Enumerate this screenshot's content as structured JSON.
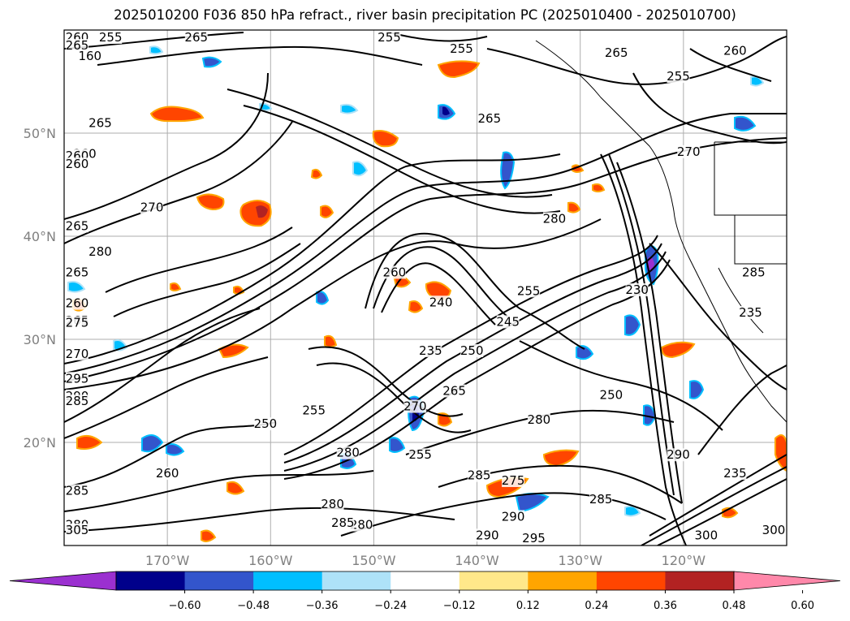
{
  "title": "2025010200 F036 850 hPa refract., river basin precipitation PC (2025010400 - 2025010700)",
  "lon_labels": [
    {
      "text": "170°W",
      "lon": -170
    },
    {
      "text": "160°W",
      "lon": -160
    },
    {
      "text": "150°W",
      "lon": -150
    },
    {
      "text": "140°W",
      "lon": -140
    },
    {
      "text": "130°W",
      "lon": -130
    },
    {
      "text": "120°W",
      "lon": -120
    }
  ],
  "lat_labels": [
    {
      "text": "50°N",
      "lat": 50
    },
    {
      "text": "40°N",
      "lat": 40
    },
    {
      "text": "30°N",
      "lat": 30
    },
    {
      "text": "20°N",
      "lat": 20
    }
  ],
  "extent": {
    "lon_min": -180,
    "lon_max": -110,
    "lat_min": 10,
    "lat_max": 60
  },
  "colorbar": {
    "colors": [
      "#9b30d0",
      "#00008b",
      "#3355cc",
      "#00bfff",
      "#aee2f8",
      "#ffffff",
      "#ffe88a",
      "#ffa500",
      "#ff4500",
      "#b22222",
      "#ff88aa"
    ],
    "tick_labels": [
      "−0.60",
      "−0.48",
      "−0.36",
      "−0.24",
      "−0.12",
      "0.12",
      "0.24",
      "0.36",
      "0.48",
      "0.60"
    ]
  },
  "contour_labels": [
    {
      "text": "260",
      "lon": -180.0,
      "lat": 59.6
    },
    {
      "text": "265",
      "lon": -183.5,
      "lat": 58.5
    },
    {
      "text": "255",
      "lon": -175.5,
      "lat": 59.7
    },
    {
      "text": "265",
      "lon": -167.2,
      "lat": 59.5
    },
    {
      "text": "255",
      "lon": -148.5,
      "lat": 59.6
    },
    {
      "text": "255",
      "lon": -141.5,
      "lat": 58.2
    },
    {
      "text": "265",
      "lon": -126.5,
      "lat": 57.8
    },
    {
      "text": "260",
      "lon": -115.0,
      "lat": 58.0
    },
    {
      "text": "255",
      "lon": -120.5,
      "lat": 55.5
    },
    {
      "text": "160",
      "lon": -177.5,
      "lat": 57.5
    },
    {
      "text": "265",
      "lon": -176.5,
      "lat": 51.0
    },
    {
      "text": "265",
      "lon": -138.8,
      "lat": 51.4
    },
    {
      "text": "270",
      "lon": -119.5,
      "lat": 48.2
    },
    {
      "text": "260",
      "lon": -178.0,
      "lat": 48.0
    },
    {
      "text": "260",
      "lon": -181.5,
      "lat": 47.8
    },
    {
      "text": "260",
      "lon": -179.8,
      "lat": 47.0
    },
    {
      "text": "265",
      "lon": -187.5,
      "lat": 41.0
    },
    {
      "text": "270",
      "lon": -171.5,
      "lat": 42.8
    },
    {
      "text": "280",
      "lon": -176.5,
      "lat": 38.5
    },
    {
      "text": "280",
      "lon": -132.5,
      "lat": 41.7
    },
    {
      "text": "260",
      "lon": -148.0,
      "lat": 36.5
    },
    {
      "text": "265",
      "lon": -184.0,
      "lat": 36.5
    },
    {
      "text": "255",
      "lon": -135.0,
      "lat": 34.7
    },
    {
      "text": "260",
      "lon": -185.0,
      "lat": 33.5
    },
    {
      "text": "265",
      "lon": -187.5,
      "lat": 31.8
    },
    {
      "text": "275",
      "lon": -181.5,
      "lat": 31.6
    },
    {
      "text": "245",
      "lon": -137.0,
      "lat": 31.7
    },
    {
      "text": "240",
      "lon": -143.5,
      "lat": 33.6
    },
    {
      "text": "235",
      "lon": -144.5,
      "lat": 28.9
    },
    {
      "text": "250",
      "lon": -140.5,
      "lat": 28.9
    },
    {
      "text": "230",
      "lon": -124.5,
      "lat": 34.8
    },
    {
      "text": "235",
      "lon": -113.5,
      "lat": 32.6
    },
    {
      "text": "285",
      "lon": -113.2,
      "lat": 36.5
    },
    {
      "text": "270",
      "lon": -184.8,
      "lat": 28.6
    },
    {
      "text": "295",
      "lon": -186.5,
      "lat": 26.2
    },
    {
      "text": "290",
      "lon": -190.0,
      "lat": 24.5
    },
    {
      "text": "285",
      "lon": -182.0,
      "lat": 24.0
    },
    {
      "text": "250",
      "lon": -127.0,
      "lat": 24.6
    },
    {
      "text": "265",
      "lon": -142.2,
      "lat": 25.0
    },
    {
      "text": "255",
      "lon": -155.8,
      "lat": 23.1
    },
    {
      "text": "270",
      "lon": -146.0,
      "lat": 23.5
    },
    {
      "text": "280",
      "lon": -134.0,
      "lat": 22.2
    },
    {
      "text": "250",
      "lon": -160.5,
      "lat": 21.8
    },
    {
      "text": "280",
      "lon": -152.5,
      "lat": 19.0
    },
    {
      "text": "255",
      "lon": -145.5,
      "lat": 18.8
    },
    {
      "text": "260",
      "lon": -170.0,
      "lat": 17.0
    },
    {
      "text": "290",
      "lon": -120.5,
      "lat": 18.8
    },
    {
      "text": "285",
      "lon": -139.8,
      "lat": 16.8
    },
    {
      "text": "275",
      "lon": -136.5,
      "lat": 16.3
    },
    {
      "text": "285",
      "lon": -183.0,
      "lat": 15.3
    },
    {
      "text": "280",
      "lon": -154.0,
      "lat": 14.0
    },
    {
      "text": "285",
      "lon": -128.0,
      "lat": 14.5
    },
    {
      "text": "235",
      "lon": -115.0,
      "lat": 17.0
    },
    {
      "text": "290",
      "lon": -136.5,
      "lat": 12.8
    },
    {
      "text": "280",
      "lon": -151.2,
      "lat": 12.0
    },
    {
      "text": "285",
      "lon": -153.0,
      "lat": 12.2
    },
    {
      "text": "280",
      "lon": -182.5,
      "lat": 12.0
    },
    {
      "text": "290",
      "lon": -139.0,
      "lat": 11.0
    },
    {
      "text": "295",
      "lon": -134.5,
      "lat": 10.5
    },
    {
      "text": "300",
      "lon": -117.8,
      "lat": 11.0
    },
    {
      "text": "305",
      "lon": -187.0,
      "lat": 11.5
    },
    {
      "text": "300",
      "lon": -110.5,
      "lat": 11.5
    }
  ]
}
